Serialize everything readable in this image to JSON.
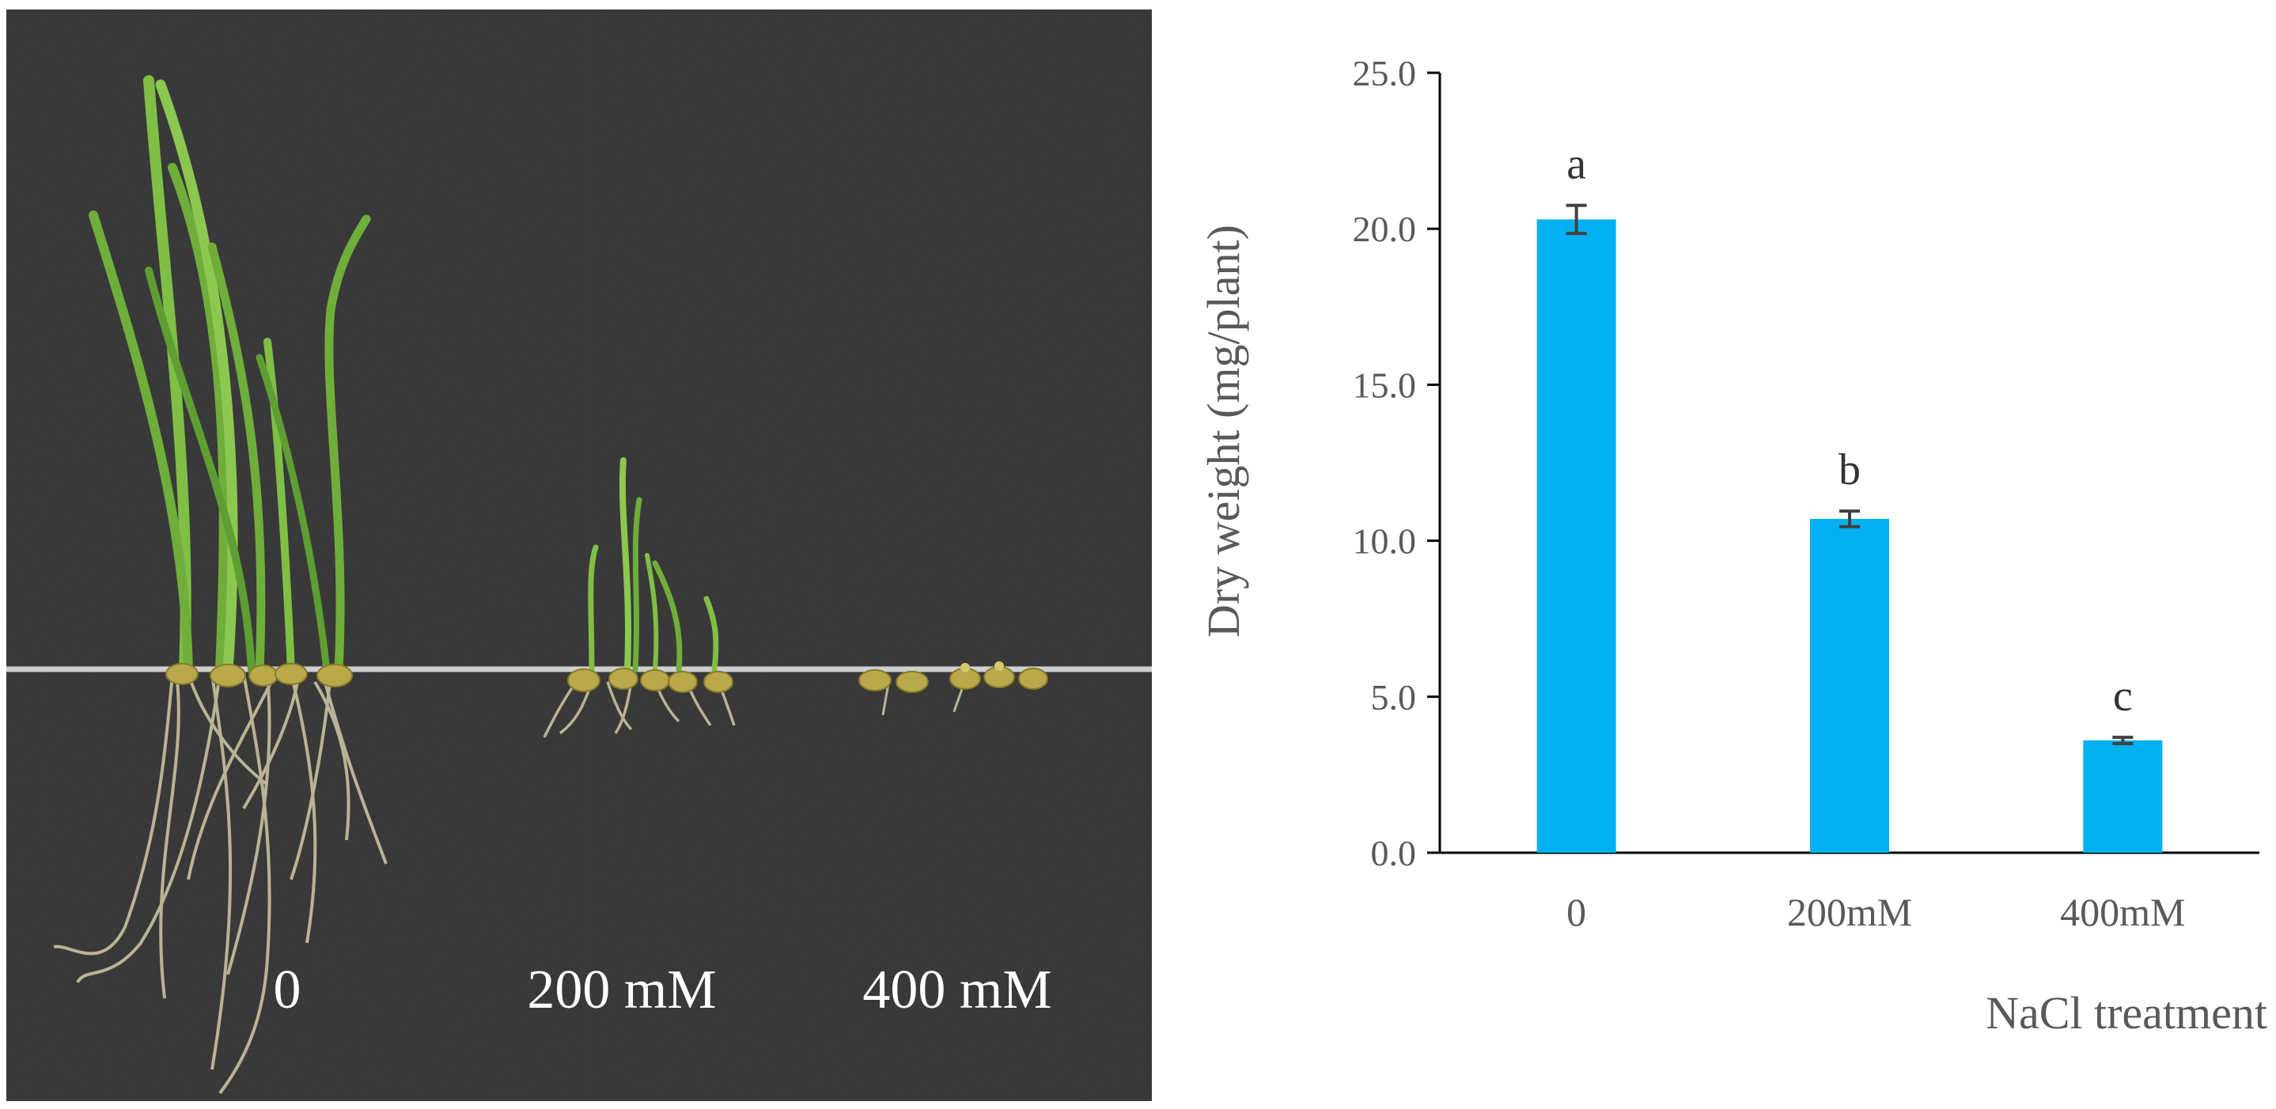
{
  "photo": {
    "labels": [
      "0",
      "200 mM",
      "400 mM"
    ],
    "background_color": "#2d2d2d",
    "leaf_color": "#6fae3a",
    "root_color": "#c9c1a0",
    "seed_color": "#b9a94a"
  },
  "chart_data": {
    "type": "bar",
    "categories": [
      "0",
      "200mM",
      "400mM"
    ],
    "values": [
      20.3,
      10.7,
      3.6
    ],
    "errors": [
      0.45,
      0.25,
      0.1
    ],
    "significance_letters": [
      "a",
      "b",
      "c"
    ],
    "title": "",
    "xlabel": "NaCl treatment",
    "ylabel": "Dry weight (mg/plant)",
    "ylim": [
      0,
      25
    ],
    "yticks": [
      "0.0",
      "5.0",
      "10.0",
      "15.0",
      "20.0",
      "25.0"
    ],
    "grid": false,
    "legend": "none",
    "bar_color": "#00b0f0",
    "error_bar_color": "#404040"
  }
}
